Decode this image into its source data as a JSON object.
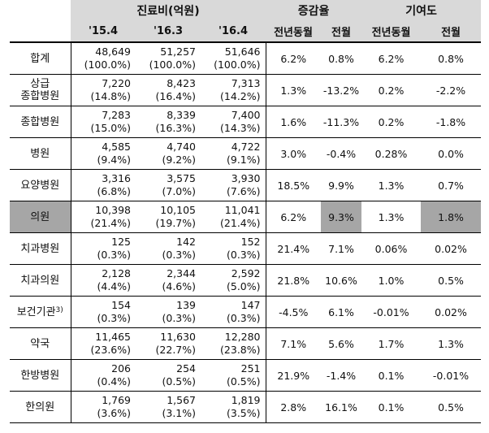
{
  "header": {
    "group_cost": "진료비(억원)",
    "group_growth": "증감율",
    "group_contrib": "기여도",
    "periods": [
      "'15.4",
      "'16.3",
      "'16.4"
    ],
    "growth_cols": [
      "전년동월",
      "전월"
    ],
    "contrib_cols": [
      "전년동월",
      "전월"
    ]
  },
  "rows": [
    {
      "label_lines": [
        "합계"
      ],
      "v1": "48,649",
      "p1": "(100.0%)",
      "v2": "51,257",
      "p2": "(100.0%)",
      "v3": "51,646",
      "p3": "(100.0%)",
      "g_yoy": "6.2%",
      "g_mom": "0.8%",
      "c_yoy": "6.2%",
      "c_mom": "0.8%"
    },
    {
      "label_lines": [
        "상급",
        "종합병원"
      ],
      "v1": "7,220",
      "p1": "(14.8%)",
      "v2": "8,423",
      "p2": "(16.4%)",
      "v3": "7,313",
      "p3": "(14.2%)",
      "g_yoy": "1.3%",
      "g_mom": "-13.2%",
      "c_yoy": "0.2%",
      "c_mom": "-2.2%"
    },
    {
      "label_lines": [
        "종합병원"
      ],
      "v1": "7,283",
      "p1": "(15.0%)",
      "v2": "8,339",
      "p2": "(16.3%)",
      "v3": "7,400",
      "p3": "(14.3%)",
      "g_yoy": "1.6%",
      "g_mom": "-11.3%",
      "c_yoy": "0.2%",
      "c_mom": "-1.8%"
    },
    {
      "label_lines": [
        "병원"
      ],
      "v1": "4,585",
      "p1": "(9.4%)",
      "v2": "4,740",
      "p2": "(9.2%)",
      "v3": "4,722",
      "p3": "(9.1%)",
      "g_yoy": "3.0%",
      "g_mom": "-0.4%",
      "c_yoy": "0.28%",
      "c_mom": "0.0%"
    },
    {
      "label_lines": [
        "요양병원"
      ],
      "v1": "3,316",
      "p1": "(6.8%)",
      "v2": "3,575",
      "p2": "(7.0%)",
      "v3": "3,930",
      "p3": "(7.6%)",
      "g_yoy": "18.5%",
      "g_mom": "9.9%",
      "c_yoy": "1.3%",
      "c_mom": "0.7%"
    },
    {
      "label_lines": [
        "의원"
      ],
      "v1": "10,398",
      "p1": "(21.4%)",
      "v2": "10,105",
      "p2": "(19.7%)",
      "v3": "11,041",
      "p3": "(21.4%)",
      "g_yoy": "6.2%",
      "g_mom": "9.3%",
      "c_yoy": "1.3%",
      "c_mom": "1.8%"
    },
    {
      "label_lines": [
        "치과병원"
      ],
      "v1": "125",
      "p1": "(0.3%)",
      "v2": "142",
      "p2": "(0.3%)",
      "v3": "152",
      "p3": "(0.3%)",
      "g_yoy": "21.4%",
      "g_mom": "7.1%",
      "c_yoy": "0.06%",
      "c_mom": "0.02%"
    },
    {
      "label_lines": [
        "치과의원"
      ],
      "v1": "2,128",
      "p1": "(4.4%)",
      "v2": "2,344",
      "p2": "(4.6%)",
      "v3": "2,592",
      "p3": "(5.0%)",
      "g_yoy": "21.8%",
      "g_mom": "10.6%",
      "c_yoy": "1.0%",
      "c_mom": "0.5%"
    },
    {
      "label_lines": [
        "보건기관"
      ],
      "label_sup": "3)",
      "v1": "154",
      "p1": "(0.3%)",
      "v2": "139",
      "p2": "(0.3%)",
      "v3": "147",
      "p3": "(0.3%)",
      "g_yoy": "-4.5%",
      "g_mom": "6.1%",
      "c_yoy": "-0.01%",
      "c_mom": "0.02%"
    },
    {
      "label_lines": [
        "약국"
      ],
      "v1": "11,465",
      "p1": "(23.6%)",
      "v2": "11,630",
      "p2": "(22.7%)",
      "v3": "12,280",
      "p3": "(23.8%)",
      "g_yoy": "7.1%",
      "g_mom": "5.6%",
      "c_yoy": "1.7%",
      "c_mom": "1.3%"
    },
    {
      "label_lines": [
        "한방병원"
      ],
      "v1": "206",
      "p1": "(0.4%)",
      "v2": "254",
      "p2": "(0.5%)",
      "v3": "251",
      "p3": "(0.5%)",
      "g_yoy": "21.9%",
      "g_mom": "-1.4%",
      "c_yoy": "0.1%",
      "c_mom": "-0.01%"
    },
    {
      "label_lines": [
        "한의원"
      ],
      "v1": "1,769",
      "p1": "(3.6%)",
      "v2": "1,567",
      "p2": "(3.1%)",
      "v3": "1,819",
      "p3": "(3.5%)",
      "g_yoy": "2.8%",
      "g_mom": "16.1%",
      "c_yoy": "0.1%",
      "c_mom": "0.5%"
    }
  ],
  "highlight": {
    "row": 5,
    "cells": [
      "label",
      "g_mom",
      "c_mom"
    ],
    "color": "#a6a6a6"
  },
  "colors": {
    "header_bg": "#d9d9d9",
    "highlight": "#a6a6a6"
  }
}
